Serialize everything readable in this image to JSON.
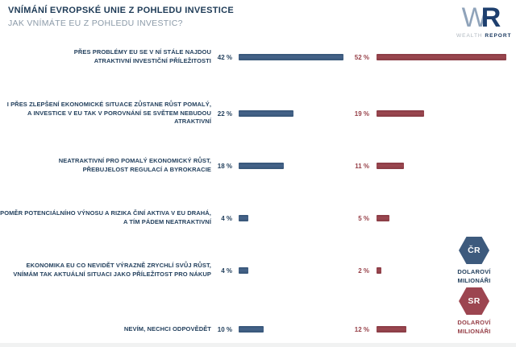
{
  "header": {
    "title": "VNÍMÁNÍ EVROPSKÉ UNIE Z POHLEDU INVESTICE",
    "subtitle": "JAK VNÍMÁTE EU Z POHLEDU INVESTIC?"
  },
  "logo": {
    "w": "W",
    "r": "R",
    "wealth": "WEALTH",
    "report": "REPORT"
  },
  "legend": {
    "cr": {
      "code": "ČR",
      "label_line1": "DOLAROVÍ",
      "label_line2": "MILIONÁŘI"
    },
    "sr": {
      "code": "SR",
      "label_line1": "DOLAROVÍ",
      "label_line2": "MILIONÁŘI"
    }
  },
  "colors": {
    "blue": "#3f5e82",
    "red": "#96414b",
    "title_navy": "#1d3a56",
    "subtitle_gray": "#8b9aa8"
  },
  "chart_data": {
    "type": "bar",
    "orientation": "horizontal",
    "unit": "%",
    "title": "VNÍMÁNÍ EVROPSKÉ UNIE Z POHLEDU INVESTICE",
    "subtitle": "JAK VNÍMÁTE EU Z POHLEDU INVESTIC?",
    "xlim": [
      0,
      55
    ],
    "grid": false,
    "legend_position": "right",
    "categories": [
      "PŘES PROBLÉMY EU SE V NÍ STÁLE NAJDOU ATRAKTIVNÍ INVESTIČNÍ PŘÍLEŽITOSTI",
      "I PŘES ZLEPŠENÍ EKONOMICKÉ SITUACE ZŮSTANE RŮST POMALÝ, A INVESTICE V EU TAK V POROVNÁNÍ SE SVĚTEM NEBUDOU ATRAKTIVNÍ",
      "NEATRAKTIVNÍ PRO POMALÝ EKONOMICKÝ RŮST, PŘEBUJELOST REGULACÍ A BYROKRACIE",
      "POMĚR POTENCIÁLNÍHO VÝNOSU A RIZIKA ČINÍ AKTIVA V EU DRAHÁ, A TÍM PÁDEM NEATRAKTIVNÍ",
      "EKONOMIKA EU CO NEVIDĚT VÝRAZNĚ ZRYCHLÍ SVŮJ RŮST, VNÍMÁM TAK AKTUÁLNÍ SITUACI JAKO PŘÍLEŽITOST PRO NÁKUP",
      "NEVÍM, NECHCI ODPOVĚDĚT"
    ],
    "category_lines": [
      [
        "PŘES PROBLÉMY EU SE V NÍ STÁLE NAJDOU",
        "ATRAKTIVNÍ INVESTIČNÍ PŘÍLEŽITOSTI"
      ],
      [
        "I PŘES ZLEPŠENÍ EKONOMICKÉ SITUACE ZŮSTANE RŮST POMALÝ,",
        "A INVESTICE V EU TAK V POROVNÁNÍ SE SVĚTEM NEBUDOU ATRAKTIVNÍ"
      ],
      [
        "NEATRAKTIVNÍ PRO POMALÝ EKONOMICKÝ RŮST,",
        "PŘEBUJELOST REGULACÍ A BYROKRACIE"
      ],
      [
        "POMĚR POTENCIÁLNÍHO VÝNOSU A RIZIKA ČINÍ AKTIVA V EU DRAHÁ,",
        "A TÍM PÁDEM NEATRAKTIVNÍ"
      ],
      [
        "EKONOMIKA EU CO NEVIDĚT VÝRAZNĚ ZRYCHLÍ SVŮJ RŮST,",
        "VNÍMÁM TAK AKTUÁLNÍ SITUACI JAKO PŘÍLEŽITOST PRO NÁKUP"
      ],
      [
        "NEVÍM, NECHCI ODPOVĚDĚT"
      ]
    ],
    "series": [
      {
        "name": "ČR DOLAROVÍ MILIONÁŘI",
        "color": "#3f5e82",
        "values": [
          42,
          22,
          18,
          4,
          4,
          10
        ]
      },
      {
        "name": "SR DOLAROVÍ MILIONÁŘI",
        "color": "#96414b",
        "values": [
          52,
          19,
          11,
          5,
          2,
          12
        ]
      }
    ],
    "value_label_format": "{v} %"
  }
}
